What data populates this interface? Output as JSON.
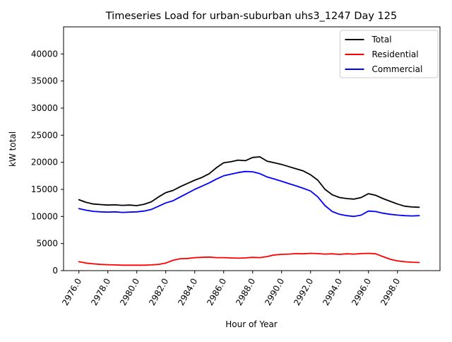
{
  "chart_data": {
    "type": "line",
    "title": "Timeseries Load for urban-suburban uhs3_1247  Day 125",
    "xlabel": "Hour of Year",
    "ylabel": "kW total",
    "grid": false,
    "legend_position": "upper right",
    "xlim": [
      2974.94,
      3000.94
    ],
    "ylim": [
      0,
      45000
    ],
    "x_ticks": [
      2976,
      2978,
      2980,
      2982,
      2984,
      2986,
      2988,
      2990,
      2992,
      2994,
      2996,
      2998
    ],
    "x_tick_labels": [
      "2976.0",
      "2978.0",
      "2980.0",
      "2982.0",
      "2984.0",
      "2986.0",
      "2988.0",
      "2990.0",
      "2992.0",
      "2994.0",
      "2996.0",
      "2998.0"
    ],
    "y_ticks": [
      0,
      5000,
      10000,
      15000,
      20000,
      25000,
      30000,
      35000,
      40000
    ],
    "y_tick_labels": [
      "0",
      "5000",
      "10000",
      "15000",
      "20000",
      "25000",
      "30000",
      "35000",
      "40000"
    ],
    "x": [
      2976.0,
      2976.5,
      2977.0,
      2977.5,
      2978.0,
      2978.5,
      2979.0,
      2979.5,
      2980.0,
      2980.5,
      2981.0,
      2981.5,
      2982.0,
      2982.5,
      2983.0,
      2983.5,
      2984.0,
      2984.5,
      2985.0,
      2985.5,
      2986.0,
      2986.5,
      2987.0,
      2987.5,
      2988.0,
      2988.5,
      2989.0,
      2989.5,
      2990.0,
      2990.5,
      2991.0,
      2991.5,
      2992.0,
      2992.5,
      2993.0,
      2993.5,
      2994.0,
      2994.5,
      2995.0,
      2995.5,
      2996.0,
      2996.5,
      2997.0,
      2997.5,
      2998.0,
      2998.5,
      2999.0,
      2999.5
    ],
    "series": [
      {
        "name": "Total",
        "color": "#000000",
        "values": [
          13100,
          12600,
          12300,
          12200,
          12100,
          12150,
          12050,
          12100,
          12000,
          12250,
          12700,
          13600,
          14400,
          14800,
          15500,
          16100,
          16700,
          17200,
          17900,
          19000,
          19900,
          20100,
          20400,
          20300,
          20900,
          21000,
          20200,
          19900,
          19600,
          19200,
          18800,
          18400,
          17700,
          16700,
          15000,
          14000,
          13500,
          13300,
          13200,
          13500,
          14200,
          13900,
          13300,
          12800,
          12300,
          11900,
          11750,
          11700
        ]
      },
      {
        "name": "Residential",
        "color": "#ff0000",
        "values": [
          1650,
          1400,
          1250,
          1150,
          1100,
          1050,
          1000,
          1000,
          1000,
          1000,
          1050,
          1150,
          1400,
          1900,
          2200,
          2250,
          2400,
          2450,
          2500,
          2400,
          2400,
          2350,
          2300,
          2350,
          2450,
          2400,
          2600,
          2900,
          3000,
          3050,
          3150,
          3100,
          3200,
          3150,
          3050,
          3100,
          3000,
          3100,
          3050,
          3150,
          3200,
          3100,
          2600,
          2100,
          1800,
          1650,
          1550,
          1500
        ]
      },
      {
        "name": "Commercial",
        "color": "#0000ff",
        "values": [
          11450,
          11150,
          10950,
          10850,
          10800,
          10850,
          10750,
          10800,
          10850,
          11000,
          11300,
          11900,
          12500,
          12900,
          13600,
          14300,
          15000,
          15600,
          16200,
          16900,
          17500,
          17800,
          18100,
          18300,
          18250,
          17900,
          17300,
          16900,
          16500,
          16050,
          15650,
          15200,
          14700,
          13600,
          12000,
          10900,
          10400,
          10150,
          10000,
          10250,
          11000,
          10900,
          10600,
          10400,
          10250,
          10150,
          10100,
          10150
        ]
      }
    ]
  }
}
